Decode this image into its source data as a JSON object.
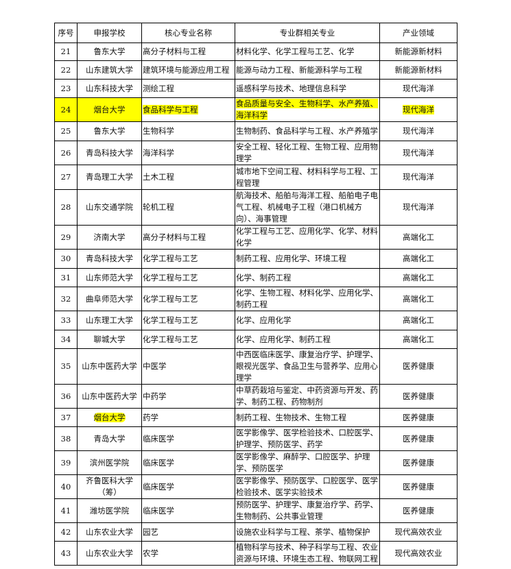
{
  "headers": [
    "序号",
    "申报学校",
    "核心专业名称",
    "专业群相关专业",
    "产业领域"
  ],
  "highlight_color": "#ffff00",
  "rows": [
    {
      "no": "21",
      "school": "鲁东大学",
      "major": "高分子材料与工程",
      "related": "材料化学、化学工程与工艺、化学",
      "field": "新能源新材料",
      "highlight": "none"
    },
    {
      "no": "22",
      "school": "山东建筑大学",
      "major": "建筑环境与能源应用工程",
      "related": "能源与动力工程、新能源科学与工程",
      "field": "新能源新材料",
      "highlight": "none"
    },
    {
      "no": "23",
      "school": "山东科技大学",
      "major": "测绘工程",
      "related": "遥感科学与技术、地理信息科学",
      "field": "现代海洋",
      "highlight": "none"
    },
    {
      "no": "24",
      "school": "烟台大学",
      "major": "食品科学与工程",
      "related": "食品质量与安全、生物科学、水产养殖、海洋科学",
      "field": "现代海洋",
      "highlight": "row"
    },
    {
      "no": "25",
      "school": "鲁东大学",
      "major": "生物科学",
      "related": "生物制药、食品科学与工程、水产养殖学",
      "field": "现代海洋",
      "highlight": "none"
    },
    {
      "no": "26",
      "school": "青岛科技大学",
      "major": "海洋科学",
      "related": "安全工程、轻化工程、生物工程、应用物理学",
      "field": "现代海洋",
      "highlight": "none"
    },
    {
      "no": "27",
      "school": "青岛理工大学",
      "major": "土木工程",
      "related": "城市地下空间工程、材料科学与工程、工程管理",
      "field": "现代海洋",
      "highlight": "none"
    },
    {
      "no": "28",
      "school": "山东交通学院",
      "major": "轮机工程",
      "related": "航海技术、船舶与海洋工程、船舶电子电气工程、机械电子工程（港口机械方向）、海事管理",
      "field": "现代海洋",
      "highlight": "none"
    },
    {
      "no": "29",
      "school": "济南大学",
      "major": "高分子材料与工程",
      "related": "化学工程与工艺、应用化学、化学、材料化学",
      "field": "高端化工",
      "highlight": "none"
    },
    {
      "no": "30",
      "school": "青岛科技大学",
      "major": "化学工程与工艺",
      "related": "制药工程、应用化学、环境工程",
      "field": "高端化工",
      "highlight": "none"
    },
    {
      "no": "31",
      "school": "山东师范大学",
      "major": "化学工程与工艺",
      "related": "化学、制药工程",
      "field": "高端化工",
      "highlight": "none"
    },
    {
      "no": "32",
      "school": "曲阜师范大学",
      "major": "化学工程与工艺",
      "related": "化学、生物工程、材料化学、应用化学、制药工程",
      "field": "高端化工",
      "highlight": "none"
    },
    {
      "no": "33",
      "school": "山东理工大学",
      "major": "化学工程与工艺",
      "related": "化学、应用化学",
      "field": "高端化工",
      "highlight": "none"
    },
    {
      "no": "34",
      "school": "聊城大学",
      "major": "化学工程与工艺",
      "related": "化学、应用化学、制药工程",
      "field": "高端化工",
      "highlight": "none"
    },
    {
      "no": "35",
      "school": "山东中医药大学",
      "major": "中医学",
      "related": "中西医临床医学、康复治疗学、护理学、眼视光医学、食品卫生与营养学、应用心理学",
      "field": "医养健康",
      "highlight": "none"
    },
    {
      "no": "36",
      "school": "山东中医药大学",
      "major": "中药学",
      "related": "中草药栽培与鉴定、中药资源与开发、药学、制药工程、药物制剂",
      "field": "医养健康",
      "highlight": "none"
    },
    {
      "no": "37",
      "school": "烟台大学",
      "major": "药学",
      "related": "制药工程、生物技术、生物工程",
      "field": "医养健康",
      "highlight": "school"
    },
    {
      "no": "38",
      "school": "青岛大学",
      "major": "临床医学",
      "related": "医学影像学、医学检验技术、口腔医学、护理学、预防医学、药学",
      "field": "医养健康",
      "highlight": "none"
    },
    {
      "no": "39",
      "school": "滨州医学院",
      "major": "临床医学",
      "related": "医学影像学、麻醉学、口腔医学、护理学、预防医学",
      "field": "医养健康",
      "highlight": "none"
    },
    {
      "no": "40",
      "school": "齐鲁医科大学（筹）",
      "major": "临床医学",
      "related": "医学影像学、预防医学、口腔医学、医学检验技术、医学实验技术",
      "field": "医养健康",
      "highlight": "none"
    },
    {
      "no": "41",
      "school": "潍坊医学院",
      "major": "临床医学",
      "related": "预防医学、护理学、康复治疗学、药学、生物制药、公共事业管理",
      "field": "医养健康",
      "highlight": "none"
    },
    {
      "no": "42",
      "school": "山东农业大学",
      "major": "园艺",
      "related": "设施农业科学与工程、茶学、植物保护",
      "field": "现代高效农业",
      "highlight": "none"
    },
    {
      "no": "43",
      "school": "山东农业大学",
      "major": "农学",
      "related": "植物科学与技术、种子科学与工程、农业资源与环境、环境生态工程、物联网工程",
      "field": "现代高效农业",
      "highlight": "none"
    }
  ]
}
